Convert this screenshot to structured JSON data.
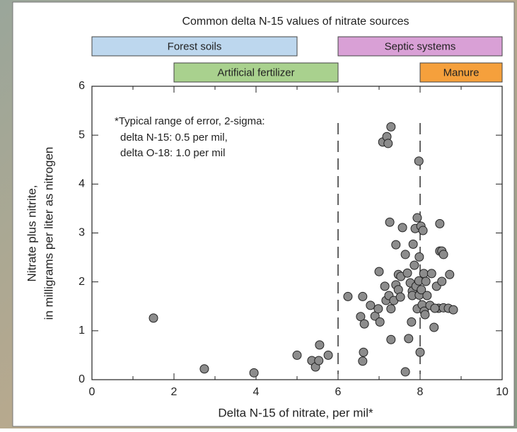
{
  "chart_data": {
    "type": "scatter",
    "title": "Common delta N-15 values of nitrate sources",
    "xlabel": "Delta N-15 of nitrate, per mil*",
    "ylabel": [
      "Nitrate plus nitrite,",
      "in milligrams per liter as nitrogen"
    ],
    "annotation": [
      "*Typical range of error, 2-sigma:",
      "delta N-15: 0.5 per mil,",
      "delta O-18: 1.0 per mil"
    ],
    "source_ranges": [
      {
        "label": "Forest soils",
        "range": [
          0,
          5
        ],
        "color": "#bdd7ee",
        "row": 0
      },
      {
        "label": "Septic systems",
        "range": [
          6,
          10
        ],
        "color": "#d9a0d6",
        "row": 0
      },
      {
        "label": "Artificial fertilizer",
        "range": [
          2,
          6
        ],
        "color": "#a9d18e",
        "row": 1
      },
      {
        "label": "Manure",
        "range": [
          8,
          10
        ],
        "color": "#f5a03c",
        "row": 1
      }
    ],
    "reference_lines": [
      6,
      8
    ],
    "xlim": [
      0,
      10
    ],
    "xticks": [
      0,
      2,
      4,
      6,
      8,
      10
    ],
    "xminorticks": [
      1,
      3,
      5,
      7,
      9
    ],
    "ylim": [
      0,
      6
    ],
    "yticks": [
      0,
      1,
      2,
      3,
      4,
      5,
      6
    ],
    "color": "#8c8c8c",
    "x": [
      1.5,
      2.74,
      3.95,
      5.0,
      5.36,
      5.45,
      5.53,
      5.55,
      5.76,
      6.24,
      6.55,
      6.6,
      6.62,
      6.6,
      6.64,
      6.79,
      6.9,
      6.98,
      7.02,
      7.0,
      7.09,
      7.19,
      7.22,
      7.29,
      7.14,
      7.17,
      7.24,
      7.26,
      7.29,
      7.29,
      7.36,
      7.41,
      7.41,
      7.47,
      7.47,
      7.52,
      7.53,
      7.57,
      7.64,
      7.64,
      7.69,
      7.72,
      7.76,
      7.79,
      7.81,
      7.81,
      7.83,
      7.86,
      7.88,
      7.9,
      7.93,
      7.93,
      7.97,
      7.97,
      7.98,
      7.98,
      8.0,
      8.02,
      8.03,
      8.05,
      8.07,
      8.09,
      8.1,
      8.12,
      8.14,
      8.17,
      8.24,
      8.28,
      8.34,
      8.4,
      8.45,
      8.48,
      8.48,
      8.53,
      8.57,
      8.53,
      8.57,
      8.69,
      8.81,
      8.72,
      8.36
    ],
    "values": [
      1.26,
      0.22,
      0.14,
      0.5,
      0.39,
      0.26,
      0.39,
      0.71,
      0.5,
      1.7,
      1.29,
      1.7,
      0.56,
      0.38,
      1.14,
      1.52,
      1.3,
      1.45,
      1.18,
      2.21,
      4.86,
      4.97,
      4.83,
      5.17,
      1.91,
      1.62,
      1.72,
      3.22,
      1.45,
      0.82,
      1.62,
      1.94,
      2.76,
      1.84,
      2.15,
      1.69,
      2.11,
      3.11,
      2.56,
      0.16,
      2.18,
      0.84,
      1.98,
      1.18,
      1.81,
      1.72,
      2.77,
      2.34,
      3.09,
      1.91,
      3.31,
      1.45,
      4.47,
      2.02,
      2.51,
      1.73,
      0.56,
      3.14,
      1.84,
      1.53,
      3.05,
      2.17,
      1.4,
      1.33,
      2.01,
      1.72,
      1.52,
      2.17,
      1.07,
      1.91,
      1.46,
      3.19,
      2.63,
      2.63,
      2.56,
      2.01,
      1.47,
      1.46,
      1.43,
      2.15,
      1.46
    ]
  }
}
